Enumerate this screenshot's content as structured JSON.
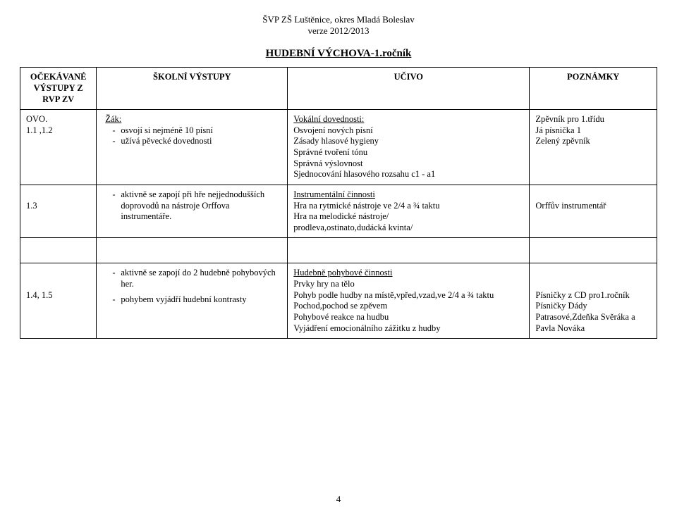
{
  "header": {
    "school_title": "ŠVP ZŠ Luštěnice, okres Mladá Boleslav",
    "version_line": "verze 2012/2013"
  },
  "section_title": "HUDEBNÍ VÝCHOVA-1.ročník",
  "table": {
    "headers": {
      "col1_line1": "OČEKÁVANÉ",
      "col1_line2": "VÝSTUPY Z RVP ZV",
      "col2": "ŠKOLNÍ VÝSTUPY",
      "col3": "UČIVO",
      "col4": "POZNÁMKY"
    },
    "rows": [
      {
        "ovo": "OVO.\n1.1 ,1.2",
        "sv_label": "Žák:",
        "sv_items": [
          "osvojí si nejméně 10 písní",
          "užívá pěvecké dovednosti"
        ],
        "uc_heading": "Vokální dovednosti:",
        "uc_lines": [
          "Osvojení nových písní",
          "Zásady hlasové hygieny",
          "Správné tvoření tónu",
          "Správná výslovnost",
          "Sjednocování hlasového rozsahu c1 - a1"
        ],
        "poz_lines": [
          "Zpěvník pro 1.třídu",
          "Já písnička 1",
          "Zelený zpěvník"
        ]
      },
      {
        "ovo": "1.3",
        "sv_items": [
          "aktivně se zapojí při hře nejjednodušších doprovodů na nástroje Orffova instrumentáře."
        ],
        "uc_heading": "Instrumentální činnosti",
        "uc_lines": [
          "Hra na rytmické nástroje ve 2/4 a  ¾ taktu",
          "Hra na melodické nástroje/",
          " prodleva,ostinato,dudácká kvinta/"
        ],
        "poz_lines": [
          "Orffův instrumentář"
        ]
      },
      {
        "ovo": "1.4, 1.5",
        "sv_items": [
          "aktivně se zapojí do 2 hudebně pohybových her.",
          "pohybem vyjádří hudební kontrasty"
        ],
        "uc_heading": "Hudebně pohybové činnosti",
        "uc_lines": [
          "Prvky hry na tělo",
          "Pohyb podle hudby na místě,vpřed,vzad,ve 2/4 a ¾ taktu",
          "Pochod,pochod se zpěvem",
          "Pohybové reakce na hudbu",
          "Vyjádření emocionálního zážitku z hudby"
        ],
        "poz_lines": [
          "Písničky z CD pro1.ročník",
          "Písničky Dády Patrasové,Zdeňka Svěráka a Pavla Nováka"
        ]
      }
    ]
  },
  "page_number": "4"
}
